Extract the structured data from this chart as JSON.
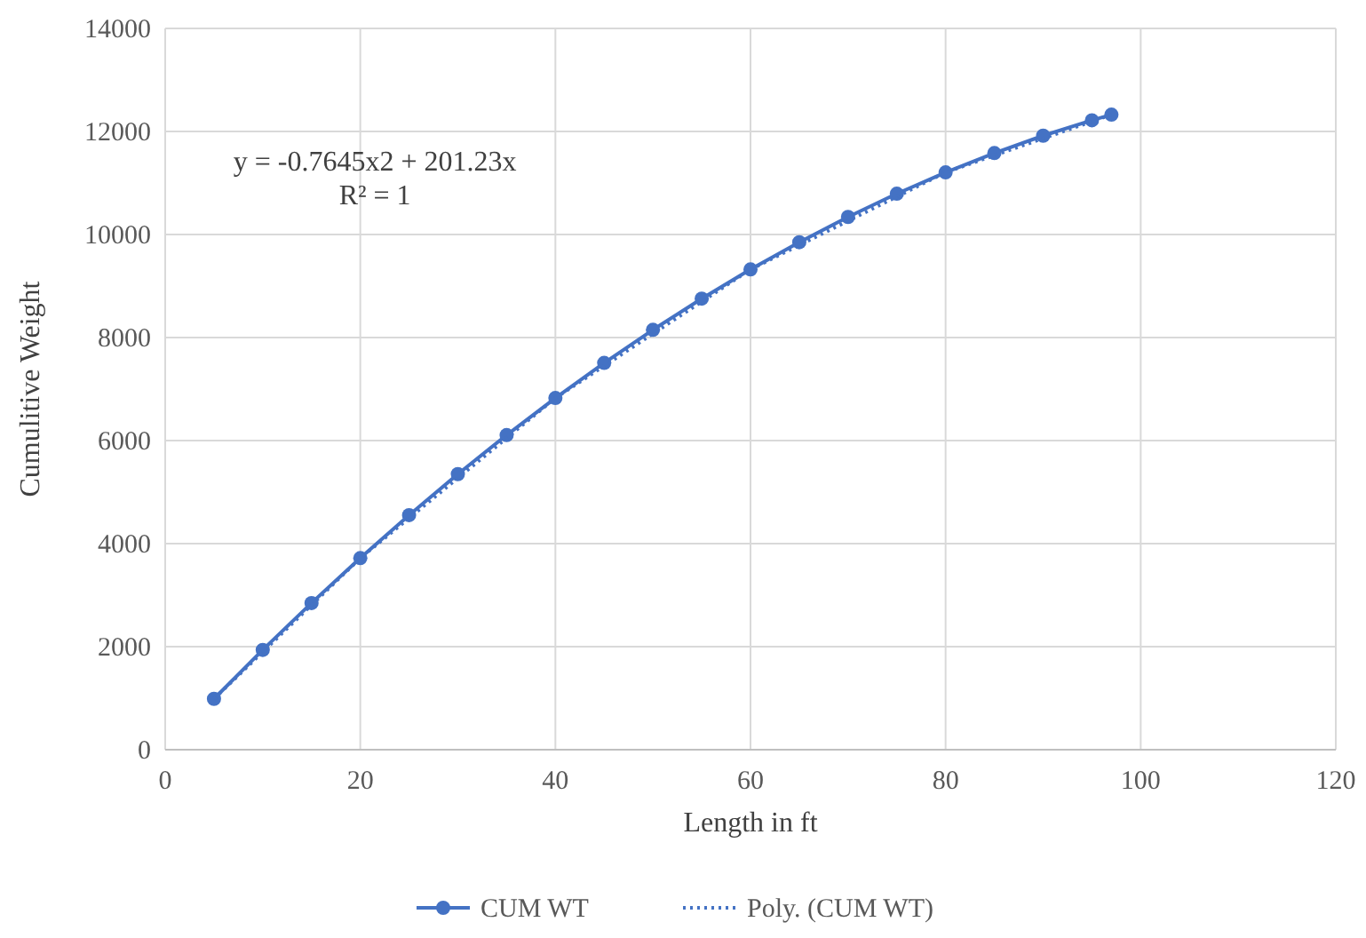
{
  "chart_data": {
    "type": "line",
    "xlabel": "Length in ft",
    "ylabel": "Cumulitive Weight",
    "x": [
      5,
      10,
      15,
      20,
      25,
      30,
      35,
      40,
      45,
      50,
      55,
      60,
      65,
      70,
      75,
      80,
      85,
      90,
      95,
      97
    ],
    "series": [
      {
        "name": "CUM WT",
        "color": "#4472c4",
        "marker": "circle",
        "line_style": "solid",
        "values": [
          987,
          1936,
          2846,
          3719,
          4553,
          5349,
          6107,
          6826,
          7507,
          8150,
          8755,
          9322,
          9850,
          10340,
          10792,
          11206,
          11581,
          11918,
          12217,
          12326
        ]
      },
      {
        "name": "Poly. (CUM WT)",
        "color": "#4472c4",
        "marker": "none",
        "line_style": "dotted",
        "x": [
          5,
          20,
          40,
          60,
          80,
          97
        ],
        "values": [
          987,
          3719,
          6826,
          9322,
          11206,
          12326
        ]
      }
    ],
    "xlim": [
      0,
      120
    ],
    "xticks": [
      0,
      20,
      40,
      60,
      80,
      100,
      120
    ],
    "ylim": [
      0,
      14000
    ],
    "yticks": [
      0,
      2000,
      4000,
      6000,
      8000,
      10000,
      12000,
      14000
    ],
    "grid": true,
    "legend": "bottom",
    "annotations": [
      "y = -0.7645x2 + 201.23x",
      "R² = 1"
    ]
  }
}
